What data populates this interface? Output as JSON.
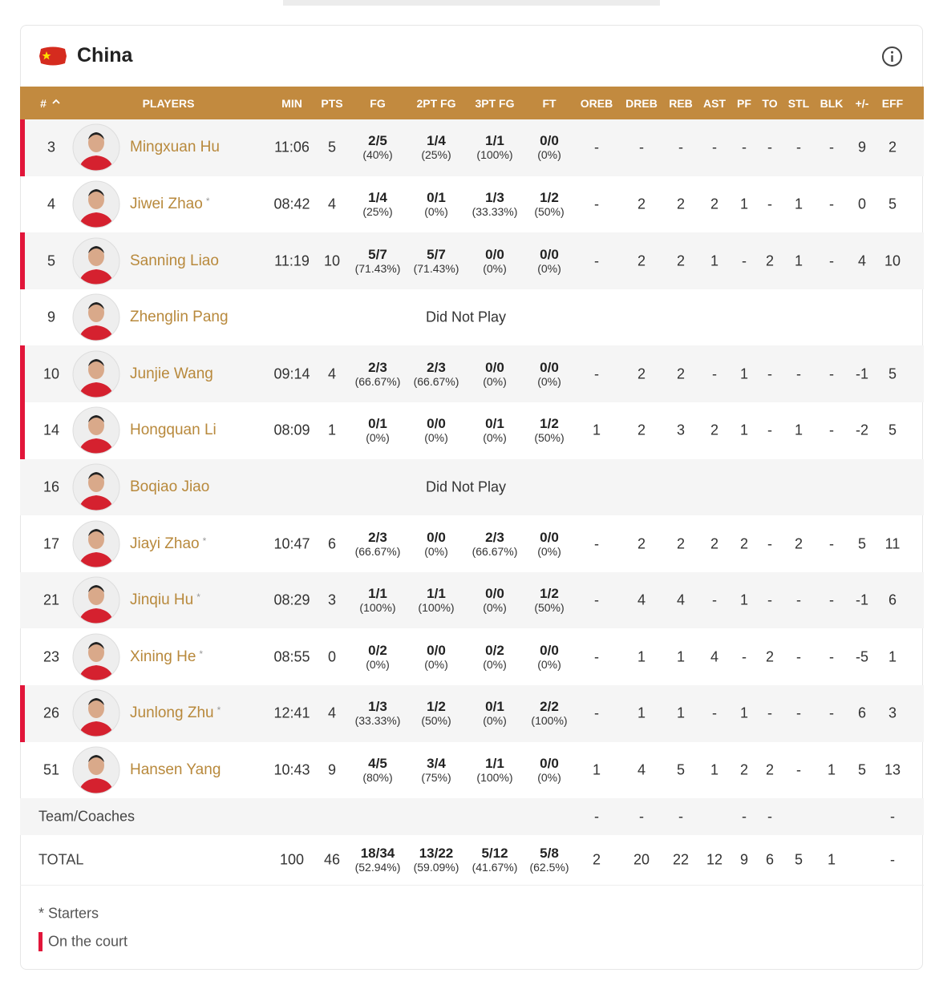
{
  "team": "China",
  "columns": [
    "#",
    "PLAYERS",
    "MIN",
    "PTS",
    "FG",
    "2PT FG",
    "3PT FG",
    "FT",
    "OREB",
    "DREB",
    "REB",
    "AST",
    "PF",
    "TO",
    "STL",
    "BLK",
    "+/-",
    "EFF"
  ],
  "legend": {
    "starter_mark": "*",
    "starters": "Starters",
    "on_court": "On the court"
  },
  "players": [
    {
      "number": 3,
      "name": "Mingxuan Hu",
      "starter": false,
      "on_court": true,
      "stats": [
        "11:06",
        5,
        {
          "made": "2/5",
          "pct": "(40%)"
        },
        {
          "made": "1/4",
          "pct": "(25%)"
        },
        {
          "made": "1/1",
          "pct": "(100%)"
        },
        {
          "made": "0/0",
          "pct": "(0%)"
        },
        "-",
        "-",
        "-",
        "-",
        "-",
        "-",
        "-",
        "-",
        9,
        2
      ]
    },
    {
      "number": 4,
      "name": "Jiwei Zhao",
      "starter": true,
      "on_court": false,
      "stats": [
        "08:42",
        4,
        {
          "made": "1/4",
          "pct": "(25%)"
        },
        {
          "made": "0/1",
          "pct": "(0%)"
        },
        {
          "made": "1/3",
          "pct": "(33.33%)"
        },
        {
          "made": "1/2",
          "pct": "(50%)"
        },
        "-",
        2,
        2,
        2,
        1,
        "-",
        1,
        "-",
        0,
        5
      ]
    },
    {
      "number": 5,
      "name": "Sanning Liao",
      "starter": false,
      "on_court": true,
      "stats": [
        "11:19",
        10,
        {
          "made": "5/7",
          "pct": "(71.43%)"
        },
        {
          "made": "5/7",
          "pct": "(71.43%)"
        },
        {
          "made": "0/0",
          "pct": "(0%)"
        },
        {
          "made": "0/0",
          "pct": "(0%)"
        },
        "-",
        2,
        2,
        1,
        "-",
        2,
        1,
        "-",
        4,
        10
      ]
    },
    {
      "number": 9,
      "name": "Zhenglin Pang",
      "starter": false,
      "on_court": false,
      "dnp": "Did Not Play"
    },
    {
      "number": 10,
      "name": "Junjie Wang",
      "starter": false,
      "on_court": true,
      "stats": [
        "09:14",
        4,
        {
          "made": "2/3",
          "pct": "(66.67%)"
        },
        {
          "made": "2/3",
          "pct": "(66.67%)"
        },
        {
          "made": "0/0",
          "pct": "(0%)"
        },
        {
          "made": "0/0",
          "pct": "(0%)"
        },
        "-",
        2,
        2,
        "-",
        1,
        "-",
        "-",
        "-",
        -1,
        5
      ]
    },
    {
      "number": 14,
      "name": "Hongquan Li",
      "starter": false,
      "on_court": true,
      "stats": [
        "08:09",
        1,
        {
          "made": "0/1",
          "pct": "(0%)"
        },
        {
          "made": "0/0",
          "pct": "(0%)"
        },
        {
          "made": "0/1",
          "pct": "(0%)"
        },
        {
          "made": "1/2",
          "pct": "(50%)"
        },
        1,
        2,
        3,
        2,
        1,
        "-",
        1,
        "-",
        -2,
        5
      ]
    },
    {
      "number": 16,
      "name": "Boqiao Jiao",
      "starter": false,
      "on_court": false,
      "dnp": "Did Not Play"
    },
    {
      "number": 17,
      "name": "Jiayi Zhao",
      "starter": true,
      "on_court": false,
      "stats": [
        "10:47",
        6,
        {
          "made": "2/3",
          "pct": "(66.67%)"
        },
        {
          "made": "0/0",
          "pct": "(0%)"
        },
        {
          "made": "2/3",
          "pct": "(66.67%)"
        },
        {
          "made": "0/0",
          "pct": "(0%)"
        },
        "-",
        2,
        2,
        2,
        2,
        "-",
        2,
        "-",
        5,
        11
      ]
    },
    {
      "number": 21,
      "name": "Jinqiu Hu",
      "starter": true,
      "on_court": false,
      "stats": [
        "08:29",
        3,
        {
          "made": "1/1",
          "pct": "(100%)"
        },
        {
          "made": "1/1",
          "pct": "(100%)"
        },
        {
          "made": "0/0",
          "pct": "(0%)"
        },
        {
          "made": "1/2",
          "pct": "(50%)"
        },
        "-",
        4,
        4,
        "-",
        1,
        "-",
        "-",
        "-",
        -1,
        6
      ]
    },
    {
      "number": 23,
      "name": "Xining He",
      "starter": true,
      "on_court": false,
      "stats": [
        "08:55",
        0,
        {
          "made": "0/2",
          "pct": "(0%)"
        },
        {
          "made": "0/0",
          "pct": "(0%)"
        },
        {
          "made": "0/2",
          "pct": "(0%)"
        },
        {
          "made": "0/0",
          "pct": "(0%)"
        },
        "-",
        1,
        1,
        4,
        "-",
        2,
        "-",
        "-",
        -5,
        1
      ]
    },
    {
      "number": 26,
      "name": "Junlong Zhu",
      "starter": true,
      "on_court": true,
      "stats": [
        "12:41",
        4,
        {
          "made": "1/3",
          "pct": "(33.33%)"
        },
        {
          "made": "1/2",
          "pct": "(50%)"
        },
        {
          "made": "0/1",
          "pct": "(0%)"
        },
        {
          "made": "2/2",
          "pct": "(100%)"
        },
        "-",
        1,
        1,
        "-",
        1,
        "-",
        "-",
        "-",
        6,
        3
      ]
    },
    {
      "number": 51,
      "name": "Hansen Yang",
      "starter": false,
      "on_court": false,
      "stats": [
        "10:43",
        9,
        {
          "made": "4/5",
          "pct": "(80%)"
        },
        {
          "made": "3/4",
          "pct": "(75%)"
        },
        {
          "made": "1/1",
          "pct": "(100%)"
        },
        {
          "made": "0/0",
          "pct": "(0%)"
        },
        1,
        4,
        5,
        1,
        2,
        2,
        "-",
        1,
        5,
        13
      ]
    }
  ],
  "team_row": {
    "label": "Team/Coaches",
    "stats": [
      null,
      null,
      null,
      null,
      null,
      null,
      "-",
      "-",
      "-",
      null,
      "-",
      "-",
      null,
      null,
      null,
      "-"
    ]
  },
  "total_row": {
    "label": "TOTAL",
    "stats": [
      100,
      46,
      {
        "made": "18/34",
        "pct": "(52.94%)"
      },
      {
        "made": "13/22",
        "pct": "(59.09%)"
      },
      {
        "made": "5/12",
        "pct": "(41.67%)"
      },
      {
        "made": "5/8",
        "pct": "(62.5%)"
      },
      2,
      20,
      22,
      12,
      9,
      6,
      5,
      1,
      null,
      "-"
    ]
  }
}
